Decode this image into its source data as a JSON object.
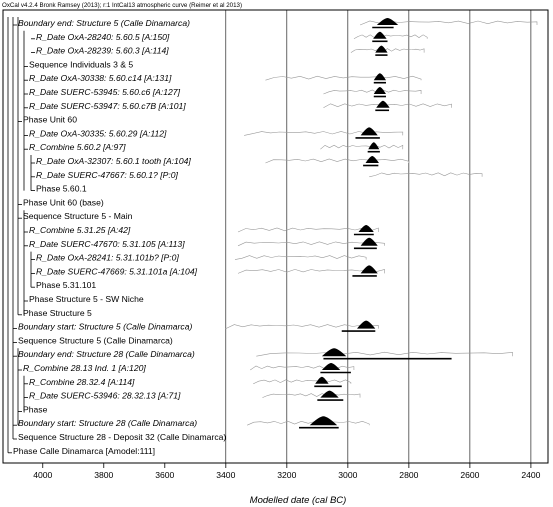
{
  "header": "OxCal v4.2.4 Bronk Ramsey (2013); r:1 IntCal13 atmospheric curve (Reimer et al 2013)",
  "chart_data": {
    "type": "oxcal-multiplot",
    "xlabel": "Modelled date (cal BC)",
    "xlim": [
      4050,
      2380
    ],
    "xticks": [
      4000,
      3800,
      3600,
      3400,
      3200,
      3000,
      2800,
      2600,
      2400
    ],
    "grid_lines": [
      3400,
      3200,
      3000,
      2800,
      2600,
      2400
    ],
    "rows": [
      {
        "label": "Boundary end: Structure 5 (Calle Dinamarca)",
        "italic": true,
        "indent": 1,
        "prior": [
          2960,
          2380
        ],
        "posterior": {
          "center": 2870,
          "width": 35,
          "height": 7
        },
        "range": [
          2920,
          2850
        ]
      },
      {
        "label": "R_Date OxA-28240: 5.60.5 [A:150]",
        "italic": true,
        "indent": 4,
        "prior": [
          2980,
          2740
        ],
        "posterior": {
          "center": 2895,
          "width": 22,
          "height": 7
        },
        "range": [
          2920,
          2870
        ]
      },
      {
        "label": "R_Date OxA-28239: 5.60.3 [A:114]",
        "italic": true,
        "indent": 4,
        "prior": [
          2990,
          2750
        ],
        "posterior": {
          "center": 2890,
          "width": 20,
          "height": 7
        },
        "range": [
          2910,
          2870
        ]
      },
      {
        "label": "Sequence Individuals 3 & 5",
        "italic": false,
        "indent": 3
      },
      {
        "label": "R_Date OxA-30338: 5.60.c14 [A:131]",
        "italic": true,
        "indent": 3,
        "prior": [
          3270,
          2760
        ],
        "posterior": {
          "center": 2895,
          "width": 20,
          "height": 7
        },
        "range": [
          2915,
          2875
        ]
      },
      {
        "label": "R_Date SUERC-53945: 5.60.c6 [A:127]",
        "italic": true,
        "indent": 3,
        "prior": [
          3080,
          2760
        ],
        "posterior": {
          "center": 2895,
          "width": 20,
          "height": 7
        },
        "range": [
          2915,
          2875
        ]
      },
      {
        "label": "R_Date SUERC-53947: 5.60.c7B [A:101]",
        "italic": true,
        "indent": 3,
        "prior": [
          3080,
          2660
        ],
        "posterior": {
          "center": 2885,
          "width": 22,
          "height": 7
        },
        "range": [
          2910,
          2865
        ]
      },
      {
        "label": "Phase Unit 60",
        "italic": false,
        "indent": 2
      },
      {
        "label": "R_Date OxA-30335: 5.60.29 [A:112]",
        "italic": true,
        "indent": 3,
        "prior": [
          3340,
          2820
        ],
        "posterior": {
          "center": 2930,
          "width": 28,
          "height": 8
        },
        "range": [
          2975,
          2895
        ]
      },
      {
        "label": "R_Combine 5.60.2 [A:97]",
        "italic": true,
        "indent": 3,
        "prior": [
          3090,
          2820
        ],
        "posterior": {
          "center": 2915,
          "width": 18,
          "height": 7
        },
        "range": [
          2935,
          2895
        ]
      },
      {
        "label": "R_Date OxA-32307: 5.60.1 tooth [A:104]",
        "italic": true,
        "indent": 4,
        "prior": [
          3270,
          2800
        ],
        "posterior": {
          "center": 2920,
          "width": 22,
          "height": 7
        },
        "range": [
          2950,
          2900
        ]
      },
      {
        "label": "R_Date SUERC-47667: 5.60.1? [P:0]",
        "italic": true,
        "indent": 4,
        "prior": [
          2930,
          2560
        ],
        "posterior": null
      },
      {
        "label": "Phase 5.60.1",
        "italic": false,
        "indent": 4
      },
      {
        "label": "Phase Unit 60 (base)",
        "italic": false,
        "indent": 2
      },
      {
        "label": "Sequence Structure 5 - Main",
        "italic": false,
        "indent": 2
      },
      {
        "label": "R_Combine 5.31.25 [A:42]",
        "italic": true,
        "indent": 3,
        "prior": [
          3360,
          2900
        ],
        "posterior": {
          "center": 2940,
          "width": 25,
          "height": 7
        },
        "range": [
          2980,
          2915
        ]
      },
      {
        "label": "R_Date SUERC-47670: 5.31.105 [A:113]",
        "italic": true,
        "indent": 3,
        "prior": [
          3360,
          2880
        ],
        "posterior": {
          "center": 2930,
          "width": 28,
          "height": 8
        },
        "range": [
          2980,
          2905
        ]
      },
      {
        "label": "R_Date OxA-28241: 5.31.101b? [P:0]",
        "italic": true,
        "indent": 4,
        "prior": [
          3370,
          2940
        ],
        "posterior": null
      },
      {
        "label": "R_Date SUERC-47669: 5.31.101a [A:104]",
        "italic": true,
        "indent": 4,
        "prior": [
          3360,
          2880
        ],
        "posterior": {
          "center": 2930,
          "width": 28,
          "height": 8
        },
        "range": [
          2985,
          2905
        ]
      },
      {
        "label": "Phase 5.31.101",
        "italic": false,
        "indent": 4
      },
      {
        "label": "Phase Structure 5 - SW Niche",
        "italic": false,
        "indent": 3
      },
      {
        "label": "Phase Structure 5",
        "italic": false,
        "indent": 2
      },
      {
        "label": "Boundary start: Structure 5 (Calle Dinamarca)",
        "italic": true,
        "indent": 1,
        "prior": [
          3400,
          2900
        ],
        "posterior": {
          "center": 2940,
          "width": 30,
          "height": 8
        },
        "range": [
          3020,
          2910
        ]
      },
      {
        "label": "Sequence Structure 5 (Calle Dinamarca)",
        "italic": false,
        "indent": 1
      },
      {
        "label": "Boundary end: Structure 28 (Calle Dinamarca)",
        "italic": true,
        "indent": 1,
        "prior": [
          3300,
          2460
        ],
        "posterior": {
          "center": 3045,
          "width": 40,
          "height": 8
        },
        "range": [
          3080,
          2660
        ]
      },
      {
        "label": "R_Combine 28.13 Ind. 1 [A:120]",
        "italic": true,
        "indent": 2,
        "prior": [
          3320,
          2980
        ],
        "posterior": {
          "center": 3055,
          "width": 30,
          "height": 7
        },
        "range": [
          3090,
          2990
        ]
      },
      {
        "label": "R_Combine 28.32.4 [A:114]",
        "italic": true,
        "indent": 3,
        "prior": [
          3310,
          2990
        ],
        "posterior": {
          "center": 3085,
          "width": 22,
          "height": 7
        },
        "range": [
          3110,
          3020
        ]
      },
      {
        "label": "R_Date SUERC-53946: 28.32.13 [A:71]",
        "italic": true,
        "indent": 3,
        "prior": [
          3280,
          2960
        ],
        "posterior": {
          "center": 3060,
          "width": 30,
          "height": 7
        },
        "range": [
          3100,
          3015
        ]
      },
      {
        "label": "Phase",
        "italic": false,
        "indent": 2
      },
      {
        "label": "Boundary start: Structure 28 (Calle Dinamarca)",
        "italic": true,
        "indent": 1,
        "prior": [
          3330,
          2930
        ],
        "posterior": {
          "center": 3080,
          "width": 45,
          "height": 9
        },
        "range": [
          3160,
          3030
        ]
      },
      {
        "label": "Sequence Structure 28 - Deposit 32 (Calle Dinamarca)",
        "italic": false,
        "indent": 1
      },
      {
        "label": "Phase Calle Dinamarca [Amodel:111]",
        "italic": false,
        "indent": 0
      }
    ]
  }
}
